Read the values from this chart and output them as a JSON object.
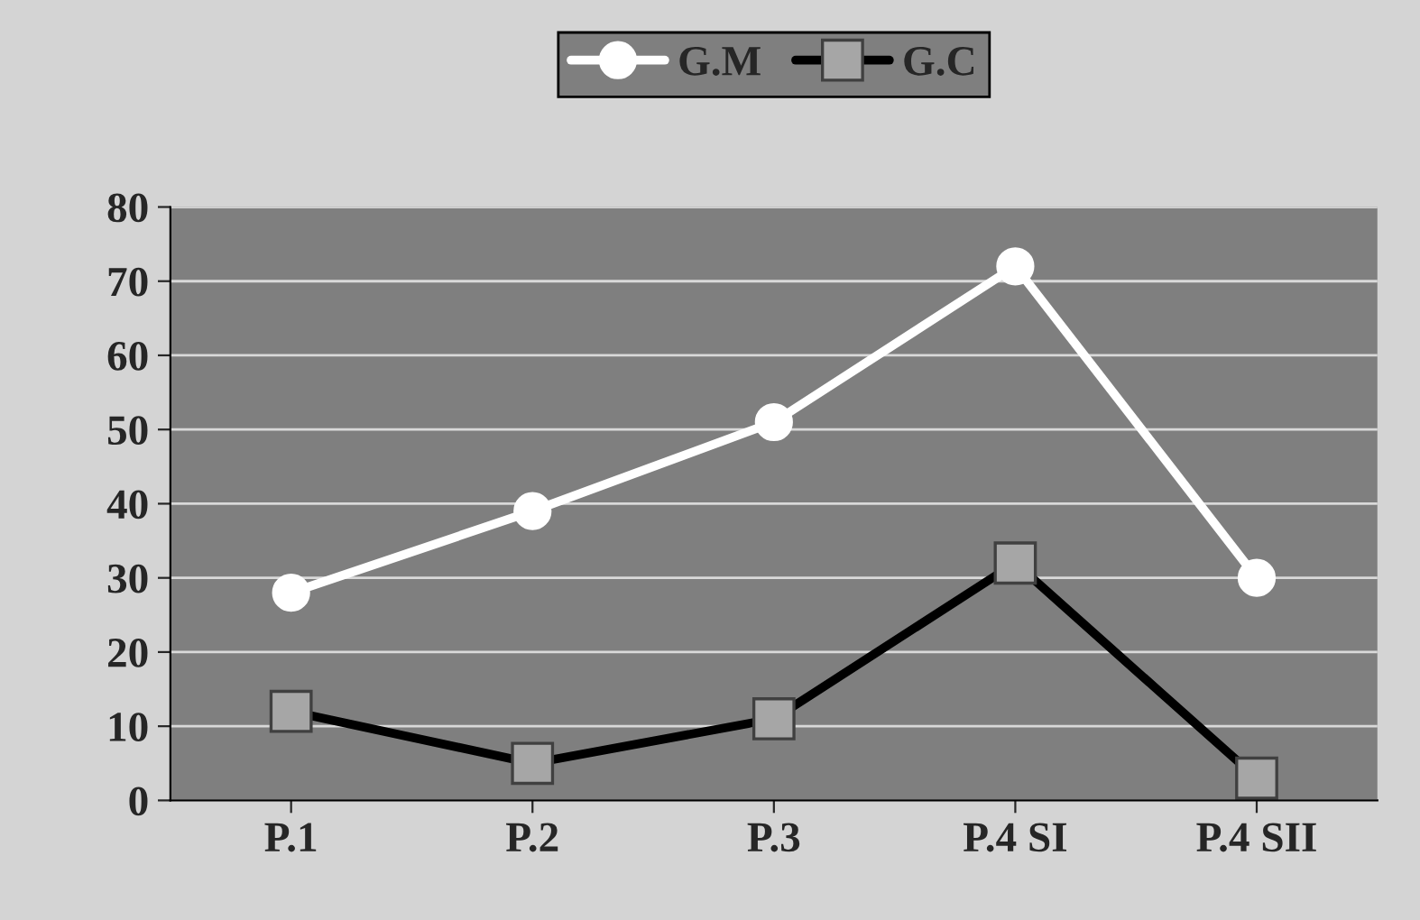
{
  "chart_data": {
    "type": "line",
    "categories": [
      "P.1",
      "P.2",
      "P.3",
      "P.4 SI",
      "P.4 SII"
    ],
    "series": [
      {
        "name": "G.M",
        "color": "#ffffff",
        "marker": "circle",
        "values": [
          28,
          39,
          51,
          72,
          30
        ]
      },
      {
        "name": "G.C",
        "color": "#000000",
        "marker": "square",
        "values": [
          12,
          5,
          11,
          32,
          3
        ]
      }
    ],
    "ylim": [
      0,
      80
    ],
    "yticks": [
      0,
      10,
      20,
      30,
      40,
      50,
      60,
      70,
      80
    ],
    "grid": "y",
    "legend": "top",
    "line_style": "solid"
  }
}
